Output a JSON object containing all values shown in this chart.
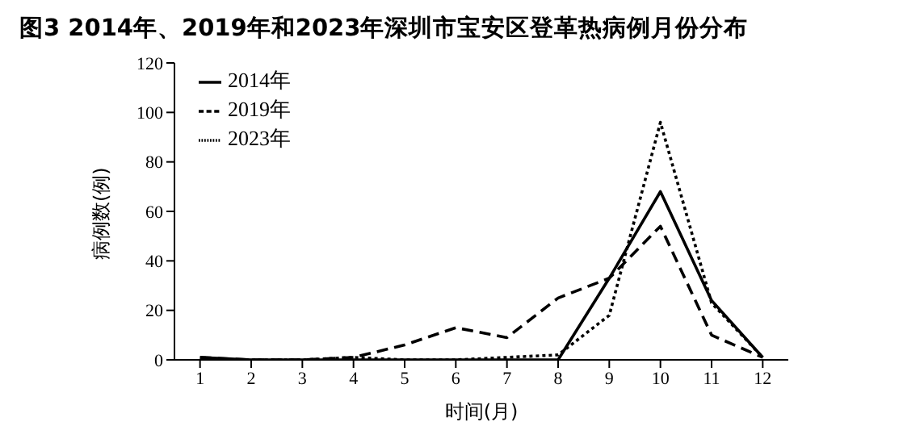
{
  "chart_data": {
    "type": "line",
    "title": "图3 2014年、2019年和2023年深圳市宝安区登革热病例月份分布",
    "xlabel": "时间(月)",
    "ylabel": "病例数(例)",
    "x": [
      1,
      2,
      3,
      4,
      5,
      6,
      7,
      8,
      9,
      10,
      11,
      12
    ],
    "series": [
      {
        "name": "2014年",
        "color": "#000000",
        "line_style": "solid",
        "values": [
          1,
          0,
          0,
          0,
          0,
          0,
          0,
          0,
          33,
          68,
          24,
          1
        ]
      },
      {
        "name": "2019年",
        "color": "#000000",
        "line_style": "dashed",
        "values": [
          1,
          0,
          0,
          1,
          6,
          13,
          9,
          25,
          33,
          54,
          10,
          1
        ]
      },
      {
        "name": "2023年",
        "color": "#000000",
        "line_style": "dotted",
        "values": [
          0,
          0,
          0,
          1,
          0,
          0,
          1,
          2,
          18,
          96,
          23,
          1
        ]
      }
    ],
    "xlim": [
      0.5,
      12.5
    ],
    "xticks": [
      1,
      2,
      3,
      4,
      5,
      6,
      7,
      8,
      9,
      10,
      11,
      12
    ],
    "ylim": [
      0,
      120
    ],
    "yticks": [
      0,
      20,
      40,
      60,
      80,
      100,
      120
    ],
    "grid": false,
    "legend": "top left",
    "marker": "none"
  }
}
